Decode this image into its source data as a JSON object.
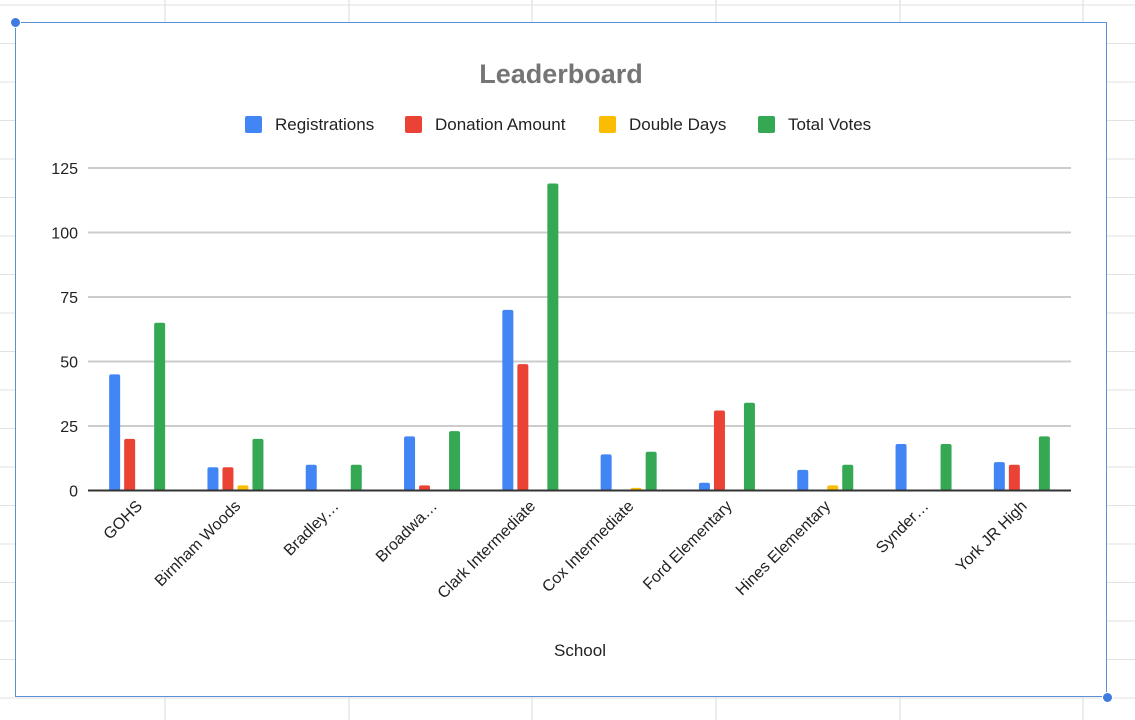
{
  "chart_data": {
    "type": "bar",
    "title": "Leaderboard",
    "xlabel": "School",
    "ylabel": "",
    "ylim": [
      0,
      125
    ],
    "yticks": [
      0,
      25,
      50,
      75,
      100,
      125
    ],
    "grid": true,
    "legend_position": "top",
    "categories": [
      "GOHS",
      "Birnham Woods",
      "Bradley…",
      "Broadwa…",
      "Clark Intermediate",
      "Cox Intermediate",
      "Ford Elementary",
      "Hines Elementary",
      "Synder…",
      "York JR High"
    ],
    "series": [
      {
        "name": "Registrations",
        "color": "#4285f4",
        "values": [
          45,
          9,
          10,
          21,
          70,
          14,
          3,
          8,
          18,
          11
        ]
      },
      {
        "name": "Donation Amount",
        "color": "#ea4335",
        "values": [
          20,
          9,
          0,
          2,
          49,
          0,
          31,
          0,
          0,
          10
        ]
      },
      {
        "name": "Double Days",
        "color": "#fbbc04",
        "values": [
          0,
          2,
          0,
          0,
          0,
          1,
          0,
          2,
          0,
          0
        ]
      },
      {
        "name": "Total Votes",
        "color": "#34a853",
        "values": [
          65,
          20,
          10,
          23,
          119,
          15,
          34,
          10,
          18,
          21
        ]
      }
    ]
  }
}
